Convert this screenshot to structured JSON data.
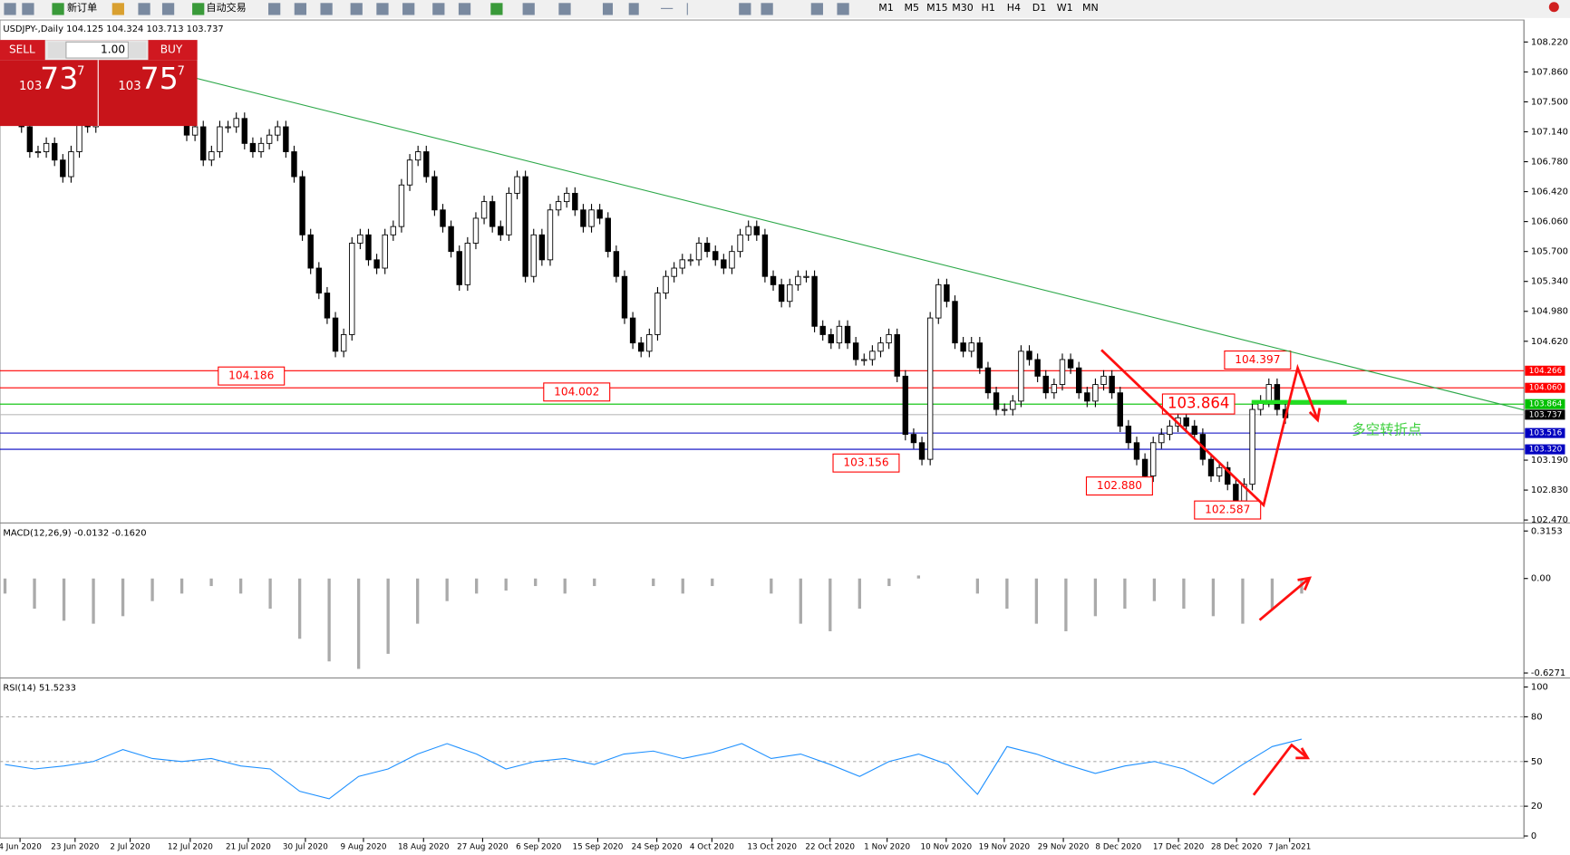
{
  "toolbar": {
    "new_order": "新订单",
    "auto_trade": "自动交易",
    "timeframes": [
      "M1",
      "M5",
      "M15",
      "M30",
      "H1",
      "H4",
      "D1",
      "W1",
      "MN"
    ]
  },
  "trade_panel": {
    "sell": "SELL",
    "buy": "BUY",
    "lots": "1.00",
    "sell_big": "103",
    "sell_price": "73",
    "sell_pip": "7",
    "buy_big": "103",
    "buy_price": "75",
    "buy_pip": "7"
  },
  "chart_data": {
    "type": "candlestick",
    "title": "USDJPY-,Daily  104.125 104.324 103.713 103.737",
    "closes": [
      107.4,
      107.5,
      107.2,
      106.9,
      106.9,
      107.0,
      106.8,
      106.6,
      106.9,
      107.3,
      107.2,
      107.5,
      107.6,
      107.4,
      107.6,
      107.8,
      107.7,
      107.5,
      107.3,
      107.3,
      107.5,
      107.3,
      107.1,
      107.2,
      106.8,
      106.9,
      107.2,
      107.2,
      107.3,
      107.0,
      106.9,
      107.0,
      107.1,
      107.2,
      106.9,
      106.6,
      105.9,
      105.5,
      105.2,
      104.9,
      104.5,
      104.7,
      105.8,
      105.9,
      105.6,
      105.5,
      105.9,
      106.0,
      106.5,
      106.8,
      106.9,
      106.6,
      106.2,
      106.0,
      105.7,
      105.3,
      105.8,
      106.1,
      106.3,
      106.0,
      105.9,
      106.4,
      106.6,
      105.4,
      105.9,
      105.6,
      106.2,
      106.3,
      106.4,
      106.2,
      106.0,
      106.2,
      106.1,
      105.7,
      105.4,
      104.9,
      104.6,
      104.5,
      104.7,
      105.2,
      105.4,
      105.5,
      105.6,
      105.6,
      105.8,
      105.7,
      105.6,
      105.5,
      105.7,
      105.9,
      106.0,
      105.9,
      105.4,
      105.3,
      105.1,
      105.3,
      105.4,
      105.4,
      104.8,
      104.7,
      104.6,
      104.8,
      104.6,
      104.4,
      104.4,
      104.5,
      104.6,
      104.7,
      104.2,
      103.5,
      103.4,
      103.2,
      104.9,
      105.3,
      105.1,
      104.6,
      104.5,
      104.6,
      104.3,
      104.0,
      103.8,
      103.8,
      103.9,
      104.5,
      104.4,
      104.2,
      104.0,
      104.1,
      104.4,
      104.3,
      104.0,
      103.9,
      104.1,
      104.2,
      104.0,
      103.6,
      103.4,
      103.2,
      103.0,
      103.4,
      103.5,
      103.6,
      103.7,
      103.6,
      103.5,
      103.2,
      103.0,
      103.1,
      102.9,
      102.7,
      102.9,
      103.8,
      103.9,
      104.1,
      103.8,
      103.7
    ],
    "ylim": [
      102.47,
      108.22
    ],
    "yticks": [
      {
        "value": 108.22,
        "label": "108.220"
      },
      {
        "value": 107.86,
        "label": "107.860"
      },
      {
        "value": 107.5,
        "label": "107.500"
      },
      {
        "value": 107.14,
        "label": "107.140"
      },
      {
        "value": 106.78,
        "label": "106.780"
      },
      {
        "value": 106.42,
        "label": "106.420"
      },
      {
        "value": 106.06,
        "label": "106.060"
      },
      {
        "value": 105.7,
        "label": "105.700"
      },
      {
        "value": 105.34,
        "label": "105.340"
      },
      {
        "value": 104.98,
        "label": "104.980"
      },
      {
        "value": 104.62,
        "label": "104.620"
      },
      {
        "value": 103.19,
        "label": "103.190"
      },
      {
        "value": 102.83,
        "label": "102.830"
      },
      {
        "value": 102.47,
        "label": "102.470"
      }
    ],
    "levels": [
      {
        "value": 104.266,
        "label": "104.266",
        "color": "#ff0000"
      },
      {
        "value": 104.06,
        "label": "104.060",
        "color": "#ff0000"
      },
      {
        "value": 103.864,
        "label": "103.864",
        "color": "#00c000"
      },
      {
        "value": 103.737,
        "label": "103.737",
        "color": "#000000"
      },
      {
        "value": 103.516,
        "label": "103.516",
        "color": "#0000c0"
      },
      {
        "value": 103.32,
        "label": "103.320",
        "color": "#0000c0"
      }
    ],
    "annotations": [
      "104.186",
      "104.002",
      "103.156",
      "102.880",
      "102.587",
      "104.397",
      "103.864",
      "多空转折点"
    ],
    "x_labels": [
      "4 Jun 2020",
      "23 Jun 2020",
      "2 Jul 2020",
      "12 Jul 2020",
      "21 Jul 2020",
      "30 Jul 2020",
      "9 Aug 2020",
      "18 Aug 2020",
      "27 Aug 2020",
      "6 Sep 2020",
      "15 Sep 2020",
      "24 Sep 2020",
      "4 Oct 2020",
      "13 Oct 2020",
      "22 Oct 2020",
      "1 Nov 2020",
      "10 Nov 2020",
      "19 Nov 2020",
      "29 Nov 2020",
      "8 Dec 2020",
      "17 Dec 2020",
      "28 Dec 2020",
      "7 Jan 2021"
    ],
    "macd": {
      "title": "MACD(12,26,9) -0.0132 -0.1620",
      "ylim": [
        -0.6271,
        0.3153
      ],
      "yticks": [
        0.3153,
        {
          "value": 0,
          "label": "0.00"
        },
        -0.6271
      ],
      "values": [
        -0.1,
        -0.2,
        -0.28,
        -0.3,
        -0.25,
        -0.15,
        -0.1,
        -0.05,
        -0.1,
        -0.2,
        -0.4,
        -0.55,
        -0.6,
        -0.5,
        -0.3,
        -0.15,
        -0.1,
        -0.08,
        -0.05,
        -0.1,
        -0.05,
        0.0,
        -0.05,
        -0.1,
        -0.05,
        0.0,
        -0.1,
        -0.3,
        -0.35,
        -0.2,
        -0.05,
        0.02,
        0.0,
        -0.1,
        -0.2,
        -0.3,
        -0.35,
        -0.25,
        -0.2,
        -0.15,
        -0.2,
        -0.25,
        -0.3,
        -0.2,
        -0.1
      ]
    },
    "rsi": {
      "title": "RSI(14) 51.5233",
      "ylim": [
        0,
        100
      ],
      "yticks": [
        100,
        80,
        50,
        20,
        0
      ],
      "color": "#1e90ff",
      "values": [
        48,
        45,
        47,
        50,
        58,
        52,
        50,
        52,
        47,
        45,
        30,
        25,
        40,
        45,
        55,
        62,
        55,
        45,
        50,
        52,
        48,
        55,
        57,
        52,
        56,
        62,
        52,
        55,
        48,
        40,
        50,
        55,
        48,
        28,
        60,
        55,
        48,
        42,
        47,
        50,
        45,
        35,
        48,
        60,
        65
      ]
    }
  }
}
